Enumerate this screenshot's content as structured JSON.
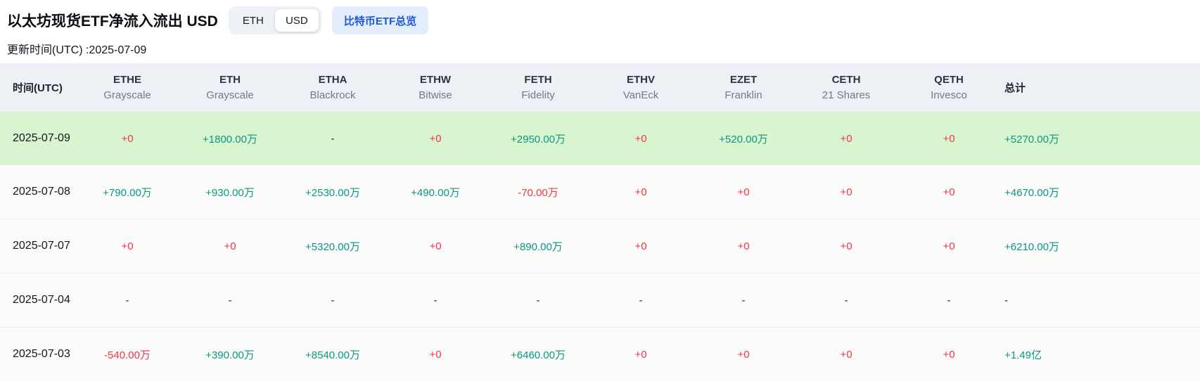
{
  "header": {
    "title": "以太坊现货ETF净流入流出 USD",
    "toggle": {
      "options": [
        "ETH",
        "USD"
      ],
      "selected": "USD"
    },
    "overview_button": "比特币ETF总览",
    "update_time": "更新时间(UTC) :2025-07-09"
  },
  "table": {
    "date_header": "时间(UTC)",
    "total_header": "总计",
    "columns": [
      {
        "ticker": "ETHE",
        "issuer": "Grayscale"
      },
      {
        "ticker": "ETH",
        "issuer": "Grayscale"
      },
      {
        "ticker": "ETHA",
        "issuer": "Blackrock"
      },
      {
        "ticker": "ETHW",
        "issuer": "Bitwise"
      },
      {
        "ticker": "FETH",
        "issuer": "Fidelity"
      },
      {
        "ticker": "ETHV",
        "issuer": "VanEck"
      },
      {
        "ticker": "EZET",
        "issuer": "Franklin"
      },
      {
        "ticker": "CETH",
        "issuer": "21 Shares"
      },
      {
        "ticker": "QETH",
        "issuer": "Invesco"
      }
    ],
    "rows": [
      {
        "date": "2025-07-09",
        "highlight": true,
        "values": [
          "+0",
          "+1800.00万",
          "-",
          "+0",
          "+2950.00万",
          "+0",
          "+520.00万",
          "+0",
          "+0"
        ],
        "total": "+5270.00万"
      },
      {
        "date": "2025-07-08",
        "highlight": false,
        "values": [
          "+790.00万",
          "+930.00万",
          "+2530.00万",
          "+490.00万",
          "-70.00万",
          "+0",
          "+0",
          "+0",
          "+0"
        ],
        "total": "+4670.00万"
      },
      {
        "date": "2025-07-07",
        "highlight": false,
        "values": [
          "+0",
          "+0",
          "+5320.00万",
          "+0",
          "+890.00万",
          "+0",
          "+0",
          "+0",
          "+0"
        ],
        "total": "+6210.00万"
      },
      {
        "date": "2025-07-04",
        "highlight": false,
        "values": [
          "-",
          "-",
          "-",
          "-",
          "-",
          "-",
          "-",
          "-",
          "-"
        ],
        "total": "-"
      },
      {
        "date": "2025-07-03",
        "highlight": false,
        "values": [
          "-540.00万",
          "+390.00万",
          "+8540.00万",
          "+0",
          "+6460.00万",
          "+0",
          "+0",
          "+0",
          "+0"
        ],
        "total": "+1.49亿"
      }
    ]
  },
  "colors": {
    "positive": "#089981",
    "negative": "#f23645",
    "highlight_row": "#d8f5d0",
    "accent_blue": "#1a56d6"
  }
}
